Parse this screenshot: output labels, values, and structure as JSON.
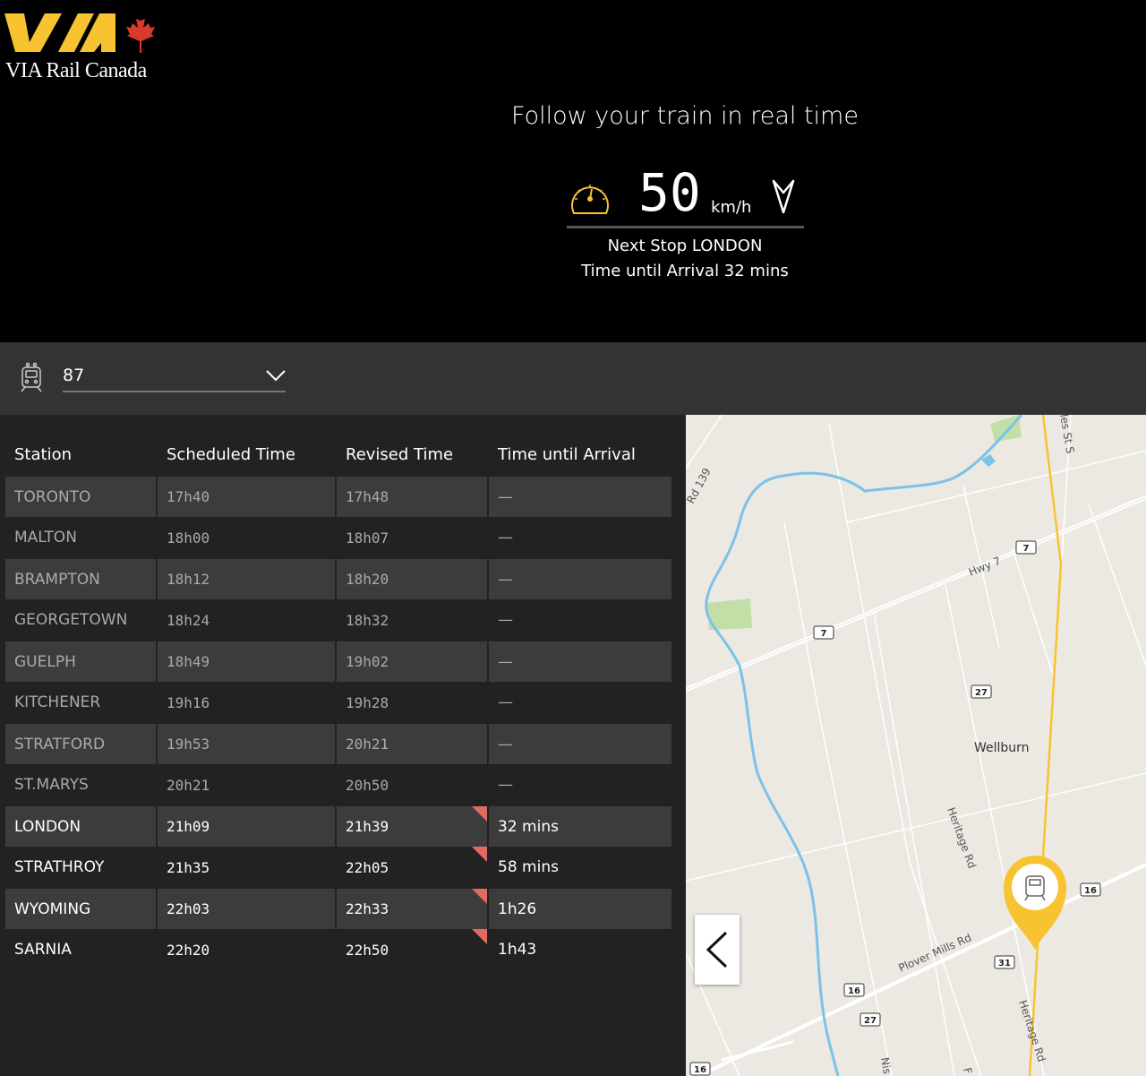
{
  "brand": {
    "logo_text": "VIA Rail Canada",
    "colors": {
      "yellow": "#f7c331",
      "red": "#d93a2b"
    }
  },
  "header": {
    "title": "Follow your train in real time",
    "speed_value": "50",
    "speed_unit": "km/h",
    "next_stop": "Next Stop LONDON",
    "time_until_arrival": "Time until Arrival 32 mins",
    "icons": [
      "speedometer-icon",
      "direction-arrow-icon"
    ]
  },
  "train_selector": {
    "value": "87",
    "icon": "train-icon"
  },
  "table": {
    "headers": [
      "Station",
      "Scheduled Time",
      "Revised Time",
      "Time until Arrival"
    ],
    "rows": [
      {
        "station": "TORONTO",
        "scheduled": "17h40",
        "revised": "17h48",
        "until": "—",
        "past": true,
        "delayed": false
      },
      {
        "station": "MALTON",
        "scheduled": "18h00",
        "revised": "18h07",
        "until": "—",
        "past": true,
        "delayed": false
      },
      {
        "station": "BRAMPTON",
        "scheduled": "18h12",
        "revised": "18h20",
        "until": "—",
        "past": true,
        "delayed": false
      },
      {
        "station": "GEORGETOWN",
        "scheduled": "18h24",
        "revised": "18h32",
        "until": "—",
        "past": true,
        "delayed": false
      },
      {
        "station": "GUELPH",
        "scheduled": "18h49",
        "revised": "19h02",
        "until": "—",
        "past": true,
        "delayed": false
      },
      {
        "station": "KITCHENER",
        "scheduled": "19h16",
        "revised": "19h28",
        "until": "—",
        "past": true,
        "delayed": false
      },
      {
        "station": "STRATFORD",
        "scheduled": "19h53",
        "revised": "20h21",
        "until": "—",
        "past": true,
        "delayed": false
      },
      {
        "station": "ST.MARYS",
        "scheduled": "20h21",
        "revised": "20h50",
        "until": "—",
        "past": true,
        "delayed": false
      },
      {
        "station": "LONDON",
        "scheduled": "21h09",
        "revised": "21h39",
        "until": "32 mins",
        "past": false,
        "delayed": true
      },
      {
        "station": "STRATHROY",
        "scheduled": "21h35",
        "revised": "22h05",
        "until": "58 mins",
        "past": false,
        "delayed": true
      },
      {
        "station": "WYOMING",
        "scheduled": "22h03",
        "revised": "22h33",
        "until": "1h26",
        "past": false,
        "delayed": true
      },
      {
        "station": "SARNIA",
        "scheduled": "22h20",
        "revised": "22h50",
        "until": "1h43",
        "past": false,
        "delayed": true
      }
    ]
  },
  "map": {
    "labels": {
      "rd139": "Rd 139",
      "hwy7": "Hwy 7",
      "wellburn": "Wellburn",
      "heritage1": "Heritage Rd",
      "heritage2": "Heritage Rd",
      "plover": "Plover Mills Rd",
      "stS": "les St S",
      "nis": "Nis",
      "f": "F"
    },
    "shields": [
      "7",
      "7",
      "27",
      "16",
      "31",
      "16",
      "27",
      "16"
    ],
    "back_icon": "chevron-left-icon",
    "marker_icon": "train-location-marker-icon"
  }
}
